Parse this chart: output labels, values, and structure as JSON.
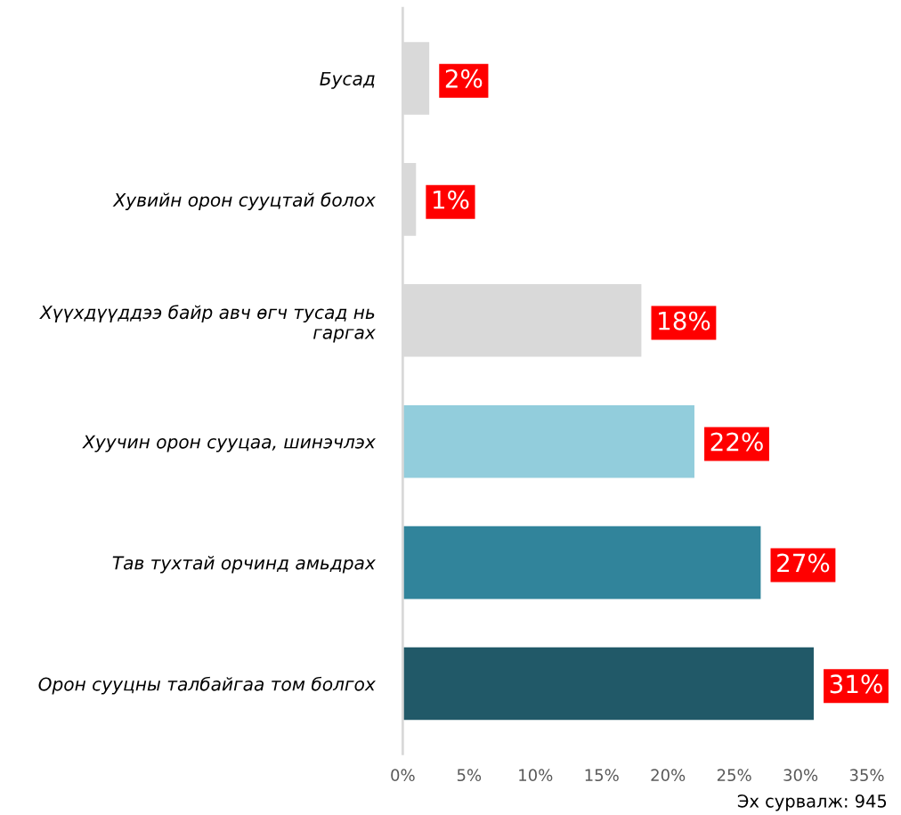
{
  "chart_data": {
    "type": "bar",
    "orientation": "horizontal",
    "categories": [
      "Бусад",
      "Хувийн орон сууцтай болох",
      "Хүүхдүүддээ байр авч өгч тусад нь гаргах",
      "Хуучин орон сууцаа, шинэчлэх",
      "Тав тухтай орчинд амьдрах",
      "Орон сууцны талбайгаа том болгох"
    ],
    "values": [
      2,
      1,
      18,
      22,
      27,
      31
    ],
    "colors": [
      "#d9d9d9",
      "#d9d9d9",
      "#d9d9d9",
      "#92cddc",
      "#31849b",
      "#215968"
    ],
    "value_labels": [
      "2%",
      "1%",
      "18%",
      "22%",
      "27%",
      "31%"
    ],
    "xlim": [
      0,
      35
    ],
    "xticks": [
      {
        "value": 0,
        "label": "0%"
      },
      {
        "value": 5,
        "label": "5%"
      },
      {
        "value": 10,
        "label": "10%"
      },
      {
        "value": 15,
        "label": "15%"
      },
      {
        "value": 20,
        "label": "20%"
      },
      {
        "value": 25,
        "label": "25%"
      },
      {
        "value": 30,
        "label": "30%"
      },
      {
        "value": 35,
        "label": "35%"
      }
    ],
    "grid": false,
    "legend": false,
    "annotations": [
      "Эх сурвалж: 945"
    ]
  }
}
